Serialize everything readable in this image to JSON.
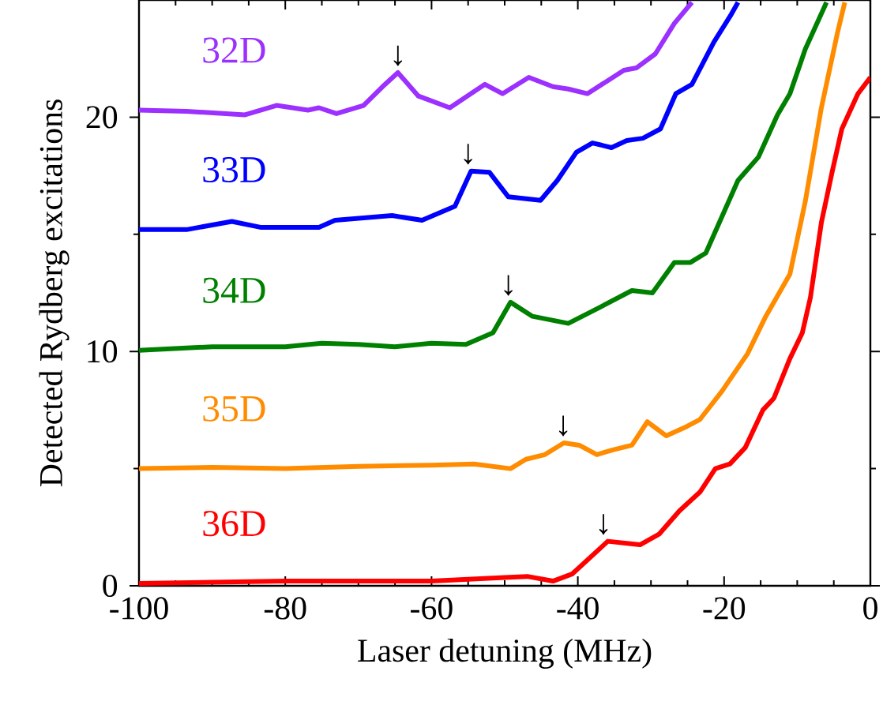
{
  "chart_data": {
    "type": "line",
    "xlabel": "Laser detuning (MHz)",
    "ylabel": "Detected Rydberg excitations",
    "xlim": [
      -100,
      0
    ],
    "ylim": [
      0,
      25
    ],
    "xticks": [
      -100,
      -80,
      -60,
      -40,
      -20,
      0
    ],
    "yticks": [
      0,
      10,
      20
    ],
    "series": [
      {
        "name": "32D",
        "color": "#9b30ff",
        "x": [
          -100,
          -93.5,
          -85.5,
          -81.2,
          -76.9,
          -75.4,
          -73,
          -69.3,
          -66.7,
          -64.6,
          -61.8,
          -57.5,
          -52.7,
          -50.3,
          -46.7,
          -43.4,
          -41.3,
          -38.7,
          -33.7,
          -32,
          -29.4,
          -26.8,
          -24.4
        ],
        "values": [
          20.3,
          20.25,
          20.1,
          20.5,
          20.3,
          20.4,
          20.15,
          20.5,
          21.3,
          21.9,
          20.9,
          20.4,
          21.4,
          21,
          21.7,
          21.3,
          21.2,
          21,
          22,
          22.1,
          22.7,
          24,
          24.9
        ]
      },
      {
        "name": "33D",
        "color": "#0000ff",
        "x": [
          -100,
          -93.5,
          -87.3,
          -83.4,
          -75.4,
          -73.2,
          -65.4,
          -61.3,
          -56.8,
          -54.6,
          -52.1,
          -49.5,
          -45.1,
          -42.8,
          -40.2,
          -38,
          -35.4,
          -33.3,
          -31.1,
          -28.7,
          -26.6,
          -24.4,
          -21.4,
          -19,
          -18.1
        ],
        "values": [
          15.2,
          15.2,
          15.55,
          15.3,
          15.3,
          15.6,
          15.8,
          15.6,
          16.2,
          17.7,
          17.65,
          16.6,
          16.45,
          17.3,
          18.5,
          18.9,
          18.7,
          19,
          19.1,
          19.5,
          21,
          21.4,
          23.2,
          24.4,
          24.9
        ]
      },
      {
        "name": "34D",
        "color": "#008000",
        "x": [
          -100,
          -90,
          -80,
          -75,
          -70,
          -65,
          -60,
          -55.3,
          -51.6,
          -49.2,
          -46.2,
          -41.3,
          -36.9,
          -32.6,
          -29.8,
          -26.8,
          -24.6,
          -22.5,
          -18.1,
          -15.3,
          -12.7,
          -11,
          -8.9,
          -6
        ],
        "values": [
          10.05,
          10.2,
          10.2,
          10.35,
          10.3,
          10.2,
          10.35,
          10.3,
          10.8,
          12.1,
          11.5,
          11.2,
          11.9,
          12.6,
          12.5,
          13.8,
          13.8,
          14.2,
          17.3,
          18.3,
          20.1,
          21,
          22.9,
          24.9
        ]
      },
      {
        "name": "35D",
        "color": "#ff8c00",
        "x": [
          -100,
          -90,
          -80,
          -70,
          -60,
          -54.2,
          -49.2,
          -47.1,
          -44.5,
          -41.9,
          -39.8,
          -37.4,
          -35.2,
          -32.6,
          -30.5,
          -27.9,
          -25.1,
          -23.3,
          -20.3,
          -16.8,
          -14.3,
          -11,
          -8.9,
          -6.7,
          -4.5,
          -3.5
        ],
        "values": [
          5,
          5.05,
          5,
          5.1,
          5.15,
          5.2,
          5,
          5.4,
          5.6,
          6.1,
          6,
          5.6,
          5.8,
          6,
          7,
          6.4,
          6.8,
          7.1,
          8.3,
          9.9,
          11.5,
          13.3,
          16.4,
          20.4,
          23.6,
          24.9
        ]
      },
      {
        "name": "36D",
        "color": "#ff0000",
        "x": [
          -100,
          -80,
          -60,
          -50,
          -46.9,
          -43.4,
          -40.8,
          -35.9,
          -31.5,
          -28.9,
          -26.1,
          -23.3,
          -21.2,
          -19.2,
          -17.1,
          -14.7,
          -13.2,
          -11,
          -9.3,
          -8.2,
          -6.7,
          -5.2,
          -3.9,
          -1.7,
          0
        ],
        "values": [
          0.1,
          0.2,
          0.2,
          0.35,
          0.4,
          0.2,
          0.5,
          1.9,
          1.75,
          2.2,
          3.2,
          4,
          5,
          5.2,
          5.9,
          7.5,
          8,
          9.7,
          10.8,
          12.3,
          15.5,
          17.7,
          19.5,
          21,
          21.7
        ]
      }
    ],
    "annotations": [
      {
        "text": "↓",
        "x": -64.6,
        "y": 21.9
      },
      {
        "text": "↓",
        "x": -55,
        "y": 17.7
      },
      {
        "text": "↓",
        "x": -49.5,
        "y": 12.1
      },
      {
        "text": "↓",
        "x": -42,
        "y": 6.1
      },
      {
        "text": "↓",
        "x": -36.5,
        "y": 1.9
      }
    ]
  }
}
